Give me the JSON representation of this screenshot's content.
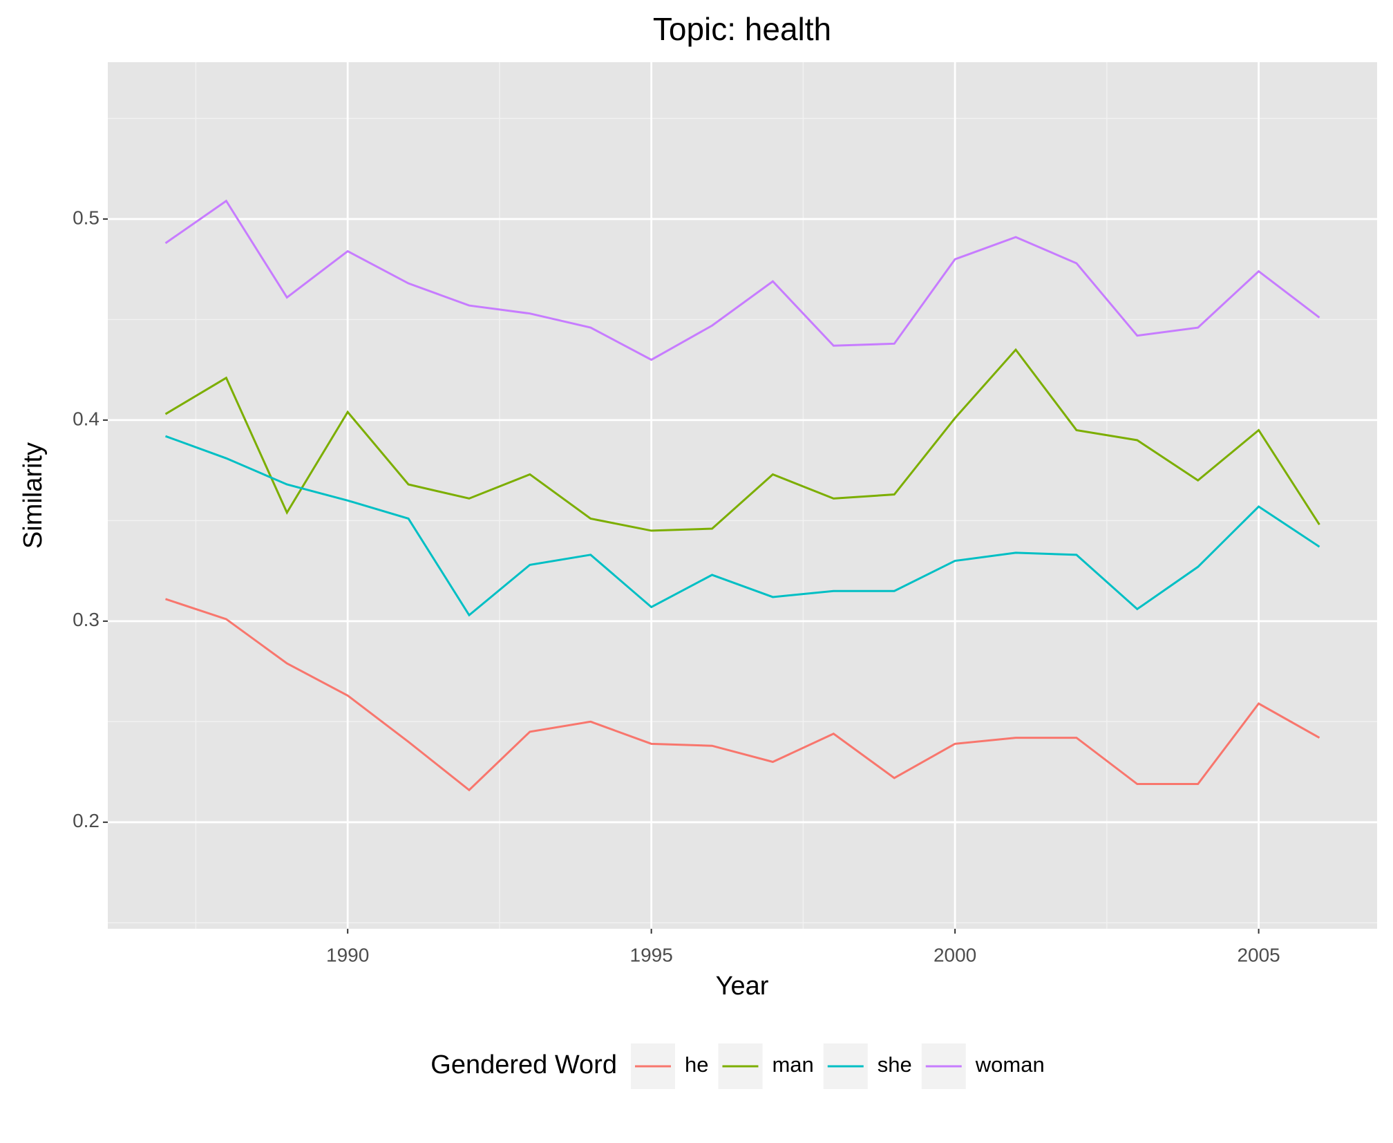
{
  "chart_data": {
    "type": "line",
    "title": "Topic: health",
    "x_label": "Year",
    "y_label": "Similarity",
    "x": [
      1987,
      1988,
      1989,
      1990,
      1991,
      1992,
      1993,
      1994,
      1995,
      1996,
      1997,
      1998,
      1999,
      2000,
      2001,
      2002,
      2003,
      2004,
      2005,
      2006
    ],
    "series": [
      {
        "name": "he",
        "color": "#f8766d",
        "values": [
          0.311,
          0.301,
          0.279,
          0.263,
          0.24,
          0.216,
          0.245,
          0.25,
          0.239,
          0.238,
          0.23,
          0.244,
          0.222,
          0.239,
          0.242,
          0.242,
          0.219,
          0.219,
          0.259,
          0.242
        ]
      },
      {
        "name": "man",
        "color": "#7cae00",
        "values": [
          0.403,
          0.421,
          0.354,
          0.404,
          0.368,
          0.361,
          0.373,
          0.351,
          0.345,
          0.346,
          0.373,
          0.361,
          0.363,
          0.401,
          0.435,
          0.395,
          0.39,
          0.37,
          0.395,
          0.348
        ]
      },
      {
        "name": "she",
        "color": "#00bfc4",
        "values": [
          0.392,
          0.381,
          0.368,
          0.36,
          0.351,
          0.303,
          0.328,
          0.333,
          0.307,
          0.323,
          0.312,
          0.315,
          0.315,
          0.33,
          0.334,
          0.333,
          0.306,
          0.327,
          0.357,
          0.337
        ]
      },
      {
        "name": "woman",
        "color": "#c77cff",
        "values": [
          0.488,
          0.509,
          0.461,
          0.484,
          0.468,
          0.457,
          0.453,
          0.446,
          0.43,
          0.447,
          0.469,
          0.437,
          0.438,
          0.48,
          0.491,
          0.478,
          0.442,
          0.446,
          0.474,
          0.451
        ]
      }
    ],
    "xlim": [
      1986.05,
      2006.95
    ],
    "xticks": [
      1990,
      1995,
      2000,
      2005
    ],
    "ylim": [
      0.147,
      0.578
    ],
    "yticks": [
      0.2,
      0.3,
      0.4,
      0.5
    ],
    "grid": true,
    "legend_title": "Gendered Word",
    "legend_position": "bottom"
  }
}
